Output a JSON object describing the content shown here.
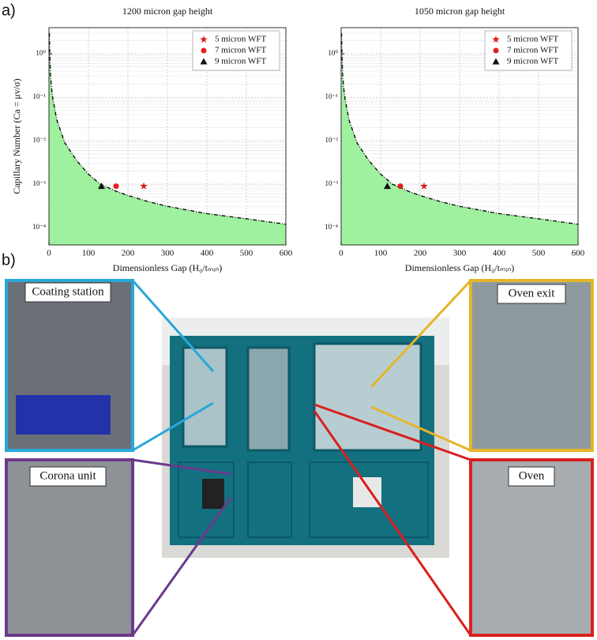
{
  "panel_labels": [
    "a)",
    "b)"
  ],
  "photo_labels": [
    "Coating station",
    "Corona unit",
    "Oven exit",
    "Oven"
  ],
  "chart_data": [
    {
      "type": "scatter",
      "title": "1200 micron gap height",
      "x_label": "Dimensionless Gap (H₀/tₘᵢₙ)",
      "y_label": "Capillary Number (Ca = μv/σ)",
      "xlim": [
        0,
        600
      ],
      "xticks": [
        0,
        100,
        200,
        300,
        400,
        500,
        600
      ],
      "ylim": [
        4e-05,
        4
      ],
      "log_y": true,
      "grid": true,
      "legend": "upper right",
      "yticks": [
        {
          "value": 0.0001,
          "label": "10⁻⁴"
        },
        {
          "value": 0.001,
          "label": "10⁻³"
        },
        {
          "value": 0.01,
          "label": "10⁻²"
        },
        {
          "value": 0.1,
          "label": "10⁻¹"
        },
        {
          "value": 1,
          "label": "10⁰"
        }
      ],
      "series": [
        {
          "color": "#000000",
          "fill": "#9ff09f",
          "x": [
            1,
            2,
            4,
            7,
            10,
            20,
            40,
            70,
            100,
            130,
            170,
            200,
            250,
            300,
            400,
            500,
            600
          ],
          "values": [
            3,
            1,
            0.3,
            0.15,
            0.09,
            0.03,
            0.009,
            0.0035,
            0.0017,
            0.001,
            0.00069,
            0.00055,
            0.0004,
            0.00031,
            0.00021,
            0.00016,
            0.00012
          ]
        },
        {
          "name": "5 micron WFT",
          "color": "#e02020",
          "marker": "star",
          "x": [
            240
          ],
          "values": [
            0.0009
          ]
        },
        {
          "name": "7 micron WFT",
          "color": "#e02020",
          "marker": "circle",
          "x": [
            170
          ],
          "values": [
            0.0009
          ]
        },
        {
          "name": "9 micron WFT",
          "color": "#111111",
          "marker": "triangle",
          "x": [
            133
          ],
          "values": [
            0.0009
          ]
        }
      ]
    },
    {
      "type": "scatter",
      "title": "1050 micron gap height",
      "x_label": "Dimensionless Gap (H₀/tₘᵢₙ)",
      "xlim": [
        0,
        600
      ],
      "xticks": [
        0,
        100,
        200,
        300,
        400,
        500,
        600
      ],
      "ylim": [
        4e-05,
        4
      ],
      "log_y": true,
      "grid": true,
      "legend": "upper right",
      "yticks": [
        {
          "value": 0.0001,
          "label": "10⁻⁴"
        },
        {
          "value": 0.001,
          "label": "10⁻³"
        },
        {
          "value": 0.01,
          "label": "10⁻²"
        },
        {
          "value": 0.1,
          "label": "10⁻¹"
        },
        {
          "value": 1,
          "label": "10⁰"
        }
      ],
      "series": [
        {
          "color": "#000000",
          "fill": "#9ff09f",
          "x": [
            1,
            2,
            4,
            7,
            10,
            20,
            40,
            70,
            100,
            130,
            170,
            200,
            250,
            300,
            400,
            500,
            600
          ],
          "values": [
            3,
            1,
            0.3,
            0.15,
            0.09,
            0.03,
            0.009,
            0.0035,
            0.0017,
            0.001,
            0.00069,
            0.00055,
            0.0004,
            0.00031,
            0.00021,
            0.00016,
            0.00012
          ]
        },
        {
          "name": "5 micron WFT",
          "color": "#e02020",
          "marker": "star",
          "x": [
            210
          ],
          "values": [
            0.0009
          ]
        },
        {
          "name": "7 micron WFT",
          "color": "#e02020",
          "marker": "circle",
          "x": [
            150
          ],
          "values": [
            0.0009
          ]
        },
        {
          "name": "9 micron WFT",
          "color": "#111111",
          "marker": "triangle",
          "x": [
            117
          ],
          "values": [
            0.0009
          ]
        }
      ]
    }
  ]
}
